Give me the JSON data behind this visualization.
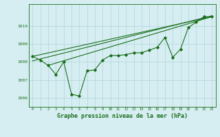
{
  "bg_color": "#d6eef2",
  "grid_color": "#b0d4da",
  "line_color": "#1a6e1a",
  "marker_color": "#1a6e1a",
  "xlabel": "Graphe pression niveau de la mer (hPa)",
  "xlabel_fontsize": 6.0,
  "xlim_min": -0.5,
  "xlim_max": 23.5,
  "ylim": [
    1005.5,
    1011.2
  ],
  "yticks": [
    1006,
    1007,
    1008,
    1009,
    1010
  ],
  "xticks": [
    0,
    1,
    2,
    3,
    4,
    5,
    6,
    7,
    8,
    9,
    10,
    11,
    12,
    13,
    14,
    15,
    16,
    17,
    18,
    19,
    20,
    21,
    22,
    23
  ],
  "series1": [
    1008.3,
    1008.1,
    1007.8,
    1007.3,
    1008.0,
    1006.2,
    1006.1,
    1007.5,
    1007.55,
    1008.1,
    1008.35,
    1008.35,
    1008.4,
    1008.5,
    1008.5,
    1008.65,
    1008.8,
    1009.35,
    1008.25,
    1008.7,
    1009.9,
    1010.2,
    1010.5,
    1010.5
  ],
  "line_straight1": [
    [
      0,
      1008.3
    ],
    [
      23,
      1010.5
    ]
  ],
  "line_straight2": [
    [
      0,
      1008.05
    ],
    [
      23,
      1010.55
    ]
  ],
  "line_straight3": [
    [
      2,
      1007.8
    ],
    [
      23,
      1010.5
    ]
  ]
}
